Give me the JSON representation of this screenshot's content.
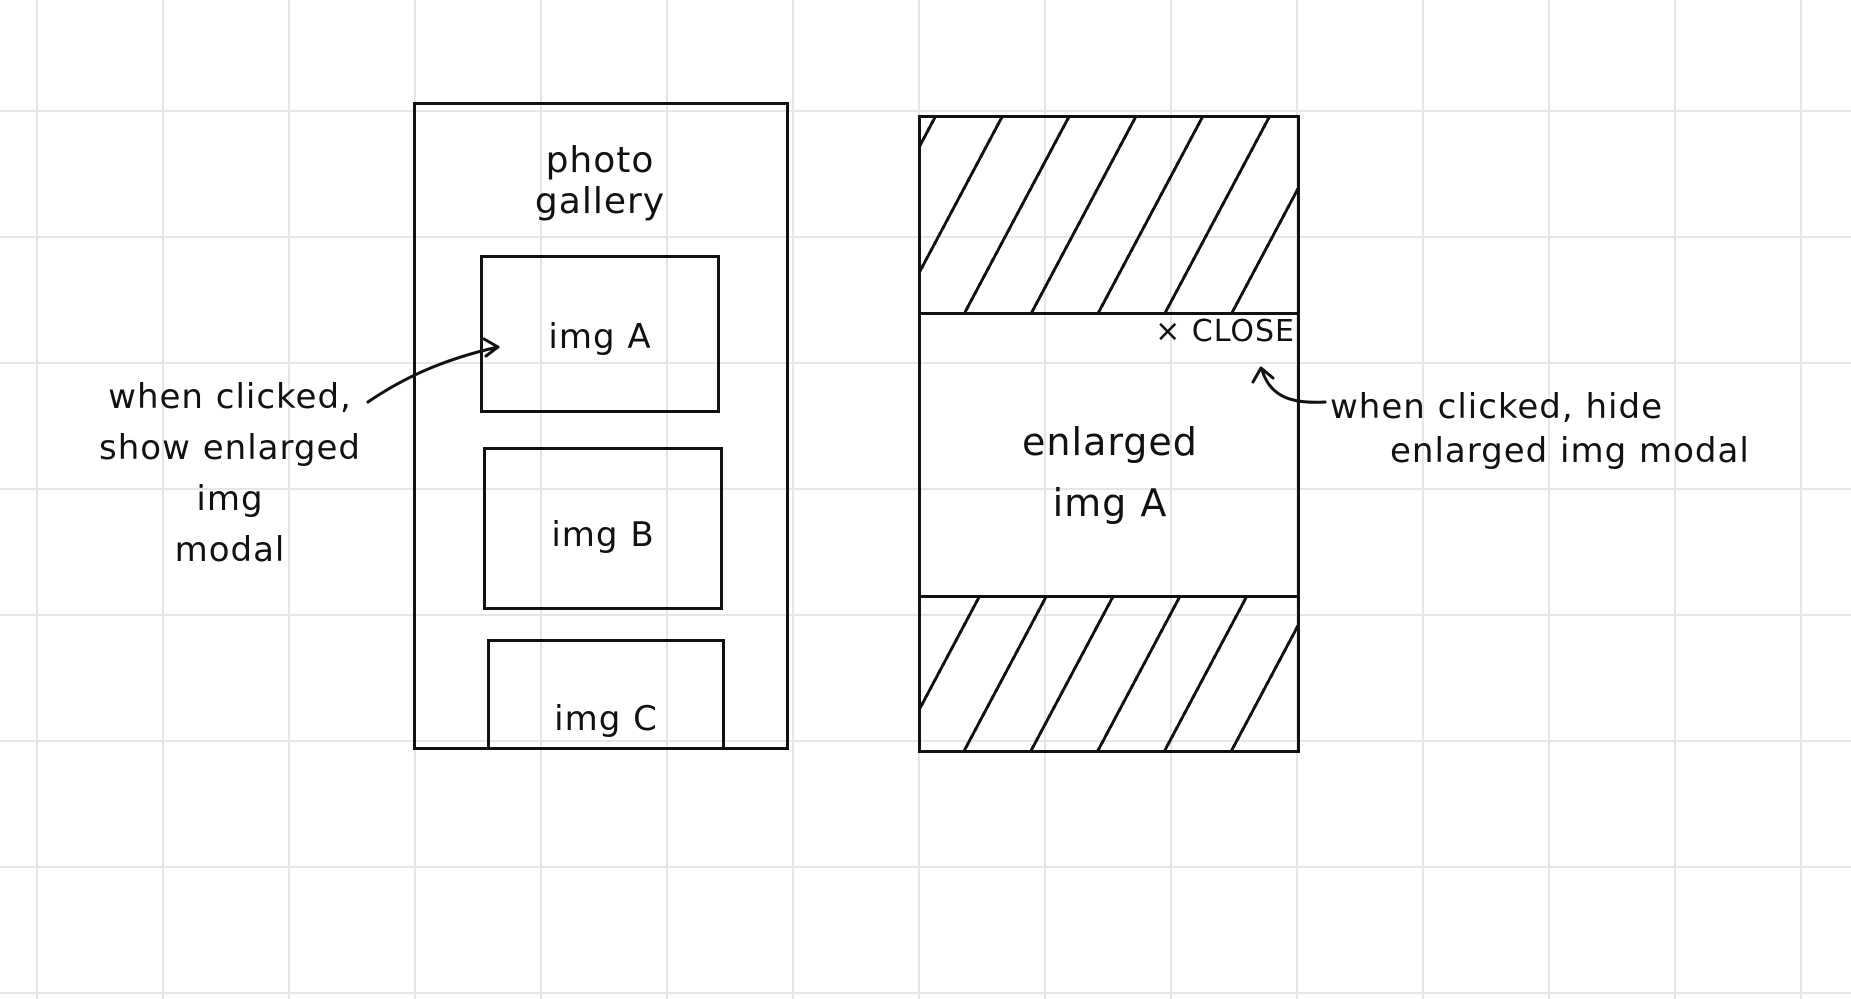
{
  "gallery": {
    "title_line1": "photo",
    "title_line2": "gallery",
    "images": [
      "img A",
      "img B",
      "img C"
    ]
  },
  "annotations": {
    "left_line1": "when clicked,",
    "left_line2": "show enlarged",
    "left_line3": "img",
    "left_line4": "modal",
    "right_line1": "when clicked, hide",
    "right_line2": "enlarged img modal"
  },
  "modal": {
    "close_label": "× CLOSE",
    "content_line1": "enlarged",
    "content_line2": "img  A"
  }
}
